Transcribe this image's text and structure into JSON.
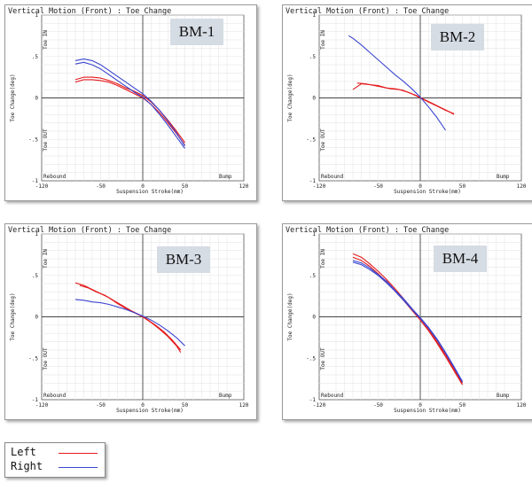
{
  "chart_data": [
    {
      "type": "line",
      "title": "Vertical Motion (Front) : Toe Change",
      "badge": "BM-1",
      "xlabel": "Suspension Stroke(mm)",
      "ylabel": "Toe Change(deg)",
      "xlim": [
        -120,
        120
      ],
      "ylim": [
        -1,
        1
      ],
      "xticks": [
        "-120",
        "-50",
        "0",
        "50",
        "120"
      ],
      "yticks": [
        "1",
        ".5",
        "0",
        "-.5",
        "-1"
      ],
      "annotations": {
        "toe_in": "Toe IN",
        "toe_out": "Toe OUT",
        "rebound": "Rebound",
        "bump": "Bump"
      },
      "series": [
        {
          "name": "Left",
          "color": "#e41a1c",
          "x": [
            -80,
            -70,
            -60,
            -50,
            -40,
            -30,
            -20,
            -10,
            0,
            10,
            20,
            30,
            40,
            50
          ],
          "y": [
            0.22,
            0.25,
            0.25,
            0.24,
            0.21,
            0.17,
            0.12,
            0.08,
            0.03,
            -0.05,
            -0.15,
            -0.27,
            -0.4,
            -0.54
          ]
        },
        {
          "name": "Left",
          "color": "#e41a1c",
          "x": [
            -80,
            -70,
            -60,
            -50,
            -40,
            -30,
            -20,
            -10,
            0,
            10,
            20,
            30,
            40,
            50
          ],
          "y": [
            0.19,
            0.22,
            0.22,
            0.21,
            0.19,
            0.15,
            0.1,
            0.05,
            0.0,
            -0.08,
            -0.18,
            -0.3,
            -0.43,
            -0.57
          ]
        },
        {
          "name": "Right",
          "color": "#3a45d0",
          "x": [
            -80,
            -70,
            -60,
            -50,
            -40,
            -30,
            -20,
            -10,
            0,
            10,
            20,
            30,
            40,
            50
          ],
          "y": [
            0.45,
            0.47,
            0.45,
            0.4,
            0.33,
            0.26,
            0.19,
            0.12,
            0.05,
            -0.04,
            -0.15,
            -0.28,
            -0.42,
            -0.58
          ]
        },
        {
          "name": "Right",
          "color": "#3a45d0",
          "x": [
            -80,
            -70,
            -60,
            -50,
            -40,
            -30,
            -20,
            -10,
            0,
            10,
            20,
            30,
            40,
            50
          ],
          "y": [
            0.41,
            0.43,
            0.4,
            0.35,
            0.28,
            0.21,
            0.14,
            0.07,
            0.01,
            -0.08,
            -0.2,
            -0.33,
            -0.47,
            -0.61
          ]
        }
      ]
    },
    {
      "type": "line",
      "title": "Vertical Motion (Front) : Toe Change",
      "badge": "BM-2",
      "xlabel": "Suspension Stroke(mm)",
      "ylabel": "Toe Change(deg)",
      "xlim": [
        -120,
        120
      ],
      "ylim": [
        -1,
        1
      ],
      "xticks": [
        "-120",
        "-50",
        "0",
        "50",
        "120"
      ],
      "yticks": [
        "1",
        ".5",
        "0",
        "-.5",
        "-1"
      ],
      "annotations": {
        "toe_in": "Toe IN",
        "toe_out": "Toe OUT",
        "rebound": "Rebound",
        "bump": "Bump"
      },
      "series": [
        {
          "name": "Left",
          "color": "#e41a1c",
          "x": [
            -80,
            -70,
            -60,
            -50,
            -40,
            -30,
            -20,
            -10,
            0,
            10,
            20,
            30,
            40
          ],
          "y": [
            0.1,
            0.17,
            0.16,
            0.15,
            0.12,
            0.11,
            0.09,
            0.05,
            0.0,
            -0.05,
            -0.1,
            -0.15,
            -0.19
          ]
        },
        {
          "name": "Left",
          "color": "#e41a1c",
          "x": [
            -75,
            -65,
            -55,
            -45,
            -35,
            -25,
            -15,
            -5,
            5,
            15,
            25,
            35,
            40
          ],
          "y": [
            0.18,
            0.17,
            0.15,
            0.13,
            0.11,
            0.1,
            0.07,
            0.03,
            -0.02,
            -0.07,
            -0.12,
            -0.17,
            -0.2
          ]
        },
        {
          "name": "Right",
          "color": "#3a45d0",
          "x": [
            -85,
            -80,
            -70,
            -60,
            -50,
            -40,
            -30,
            -20,
            -10,
            0,
            10,
            20,
            30
          ],
          "y": [
            0.75,
            0.72,
            0.64,
            0.55,
            0.46,
            0.37,
            0.28,
            0.2,
            0.11,
            0.01,
            -0.11,
            -0.24,
            -0.39
          ]
        }
      ]
    },
    {
      "type": "line",
      "title": "Vertical Motion (Front) : Toe Change",
      "badge": "BM-3",
      "xlabel": "Suspension Stroke(mm)",
      "ylabel": "Toe Change(deg)",
      "xlim": [
        -120,
        120
      ],
      "ylim": [
        -1,
        1
      ],
      "xticks": [
        "-120",
        "-50",
        "0",
        "50",
        "120"
      ],
      "yticks": [
        "1",
        ".5",
        "0",
        "-.5",
        "-1"
      ],
      "annotations": {
        "toe_in": "Toe IN",
        "toe_out": "Toe OUT",
        "rebound": "Rebound",
        "bump": "Bump"
      },
      "series": [
        {
          "name": "Left",
          "color": "#e41a1c",
          "x": [
            -80,
            -70,
            -60,
            -50,
            -40,
            -30,
            -20,
            -10,
            0,
            10,
            20,
            30,
            40,
            45
          ],
          "y": [
            0.41,
            0.38,
            0.33,
            0.28,
            0.23,
            0.16,
            0.1,
            0.05,
            0.0,
            -0.07,
            -0.15,
            -0.24,
            -0.35,
            -0.43
          ]
        },
        {
          "name": "Left",
          "color": "#e41a1c",
          "x": [
            -75,
            -65,
            -55,
            -45,
            -35,
            -25,
            -15,
            -5,
            5,
            15,
            25,
            35,
            45
          ],
          "y": [
            0.38,
            0.35,
            0.3,
            0.26,
            0.2,
            0.14,
            0.08,
            0.03,
            -0.03,
            -0.1,
            -0.18,
            -0.28,
            -0.4
          ]
        },
        {
          "name": "Right",
          "color": "#3a45d0",
          "x": [
            -80,
            -70,
            -60,
            -50,
            -40,
            -30,
            -20,
            -10,
            0,
            10,
            20,
            30,
            40,
            50
          ],
          "y": [
            0.21,
            0.2,
            0.18,
            0.17,
            0.15,
            0.12,
            0.09,
            0.05,
            0.01,
            -0.04,
            -0.1,
            -0.17,
            -0.25,
            -0.35
          ]
        }
      ]
    },
    {
      "type": "line",
      "title": "Vertical Motion (Front) : Toe Change",
      "badge": "BM-4",
      "xlabel": "Suspension Stroke(mm)",
      "ylabel": "Toe Change(deg)",
      "xlim": [
        -120,
        120
      ],
      "ylim": [
        -1,
        1
      ],
      "xticks": [
        "-120",
        "-50",
        "0",
        "50",
        "120"
      ],
      "yticks": [
        "1",
        ".5",
        "0",
        "-.5",
        "-1"
      ],
      "annotations": {
        "toe_in": "Toe IN",
        "toe_out": "Toe OUT",
        "rebound": "Rebound",
        "bump": "Bump"
      },
      "series": [
        {
          "name": "Left",
          "color": "#e41a1c",
          "x": [
            -80,
            -70,
            -60,
            -50,
            -40,
            -30,
            -20,
            -10,
            0,
            10,
            20,
            30,
            40,
            50
          ],
          "y": [
            0.76,
            0.72,
            0.64,
            0.55,
            0.45,
            0.34,
            0.22,
            0.1,
            -0.02,
            -0.15,
            -0.3,
            -0.46,
            -0.63,
            -0.8
          ]
        },
        {
          "name": "Left",
          "color": "#e41a1c",
          "x": [
            -80,
            -70,
            -60,
            -50,
            -40,
            -30,
            -20,
            -10,
            0,
            10,
            20,
            30,
            40,
            50
          ],
          "y": [
            0.72,
            0.68,
            0.61,
            0.52,
            0.42,
            0.31,
            0.2,
            0.08,
            -0.04,
            -0.17,
            -0.32,
            -0.48,
            -0.65,
            -0.82
          ]
        },
        {
          "name": "Right",
          "color": "#3a45d0",
          "x": [
            -80,
            -70,
            -60,
            -50,
            -40,
            -30,
            -20,
            -10,
            0,
            10,
            20,
            30,
            40,
            50
          ],
          "y": [
            0.66,
            0.63,
            0.57,
            0.5,
            0.41,
            0.31,
            0.2,
            0.09,
            -0.02,
            -0.14,
            -0.28,
            -0.44,
            -0.61,
            -0.79
          ]
        },
        {
          "name": "Right",
          "color": "#3a45d0",
          "x": [
            -80,
            -70,
            -60,
            -50,
            -40,
            -30,
            -20,
            -10,
            0,
            10,
            20,
            30,
            40,
            50
          ],
          "y": [
            0.68,
            0.65,
            0.59,
            0.51,
            0.43,
            0.32,
            0.22,
            0.1,
            -0.01,
            -0.13,
            -0.27,
            -0.43,
            -0.6,
            -0.78
          ]
        }
      ]
    }
  ],
  "legend": [
    {
      "label": "Left",
      "color": "#e41a1c"
    },
    {
      "label": "Right",
      "color": "#3a45d0"
    }
  ]
}
